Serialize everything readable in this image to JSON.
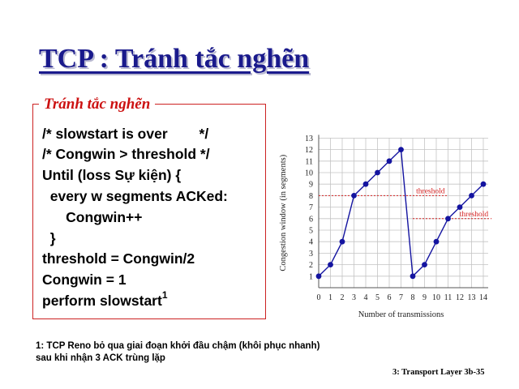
{
  "slide": {
    "title": "TCP : Tránh tắc nghẽn",
    "box_label": "Tránh tắc nghẽn",
    "code_lines": [
      "/* slowstart is over        */",
      "/* Congwin > threshold */",
      "Until (loss Sự kiện) {",
      "  every w segments ACKed:",
      "      Congwin++",
      "  }",
      "threshold = Congwin/2",
      "Congwin = 1",
      "perform slowstart"
    ],
    "footnote_marker": "1",
    "footnote": "1: TCP Reno bỏ qua giai đoạn khởi đầu chậm (khôi phục nhanh) sau khi nhận 3 ACK trùng lặp",
    "footer": "3: Transport Layer   3b-35"
  },
  "chart_data": {
    "type": "line",
    "xlabel": "Number of transmissions",
    "ylabel": "Congestion window (in segments)",
    "xlim": [
      0,
      14
    ],
    "ylim": [
      0,
      13
    ],
    "x_ticks": [
      0,
      1,
      2,
      3,
      4,
      5,
      6,
      7,
      8,
      9,
      10,
      11,
      12,
      13,
      14
    ],
    "y_ticks": [
      1,
      2,
      3,
      4,
      5,
      6,
      7,
      8,
      9,
      10,
      11,
      12,
      13
    ],
    "grid": true,
    "series": [
      {
        "x": [
          0,
          1,
          2,
          3,
          4,
          5,
          6,
          7,
          8,
          9,
          10,
          11,
          12,
          13,
          14
        ],
        "y": [
          1,
          2,
          4,
          8,
          9,
          10,
          11,
          12,
          1,
          2,
          4,
          6,
          7,
          8,
          9
        ],
        "color": "#1414a0"
      }
    ],
    "thresholds": [
      {
        "label": "threshold",
        "value": 8,
        "x_range": [
          0,
          11
        ]
      },
      {
        "label": "threshold",
        "value": 6,
        "x_range": [
          8,
          14.7
        ]
      }
    ],
    "threshold_color": "#d42020"
  }
}
